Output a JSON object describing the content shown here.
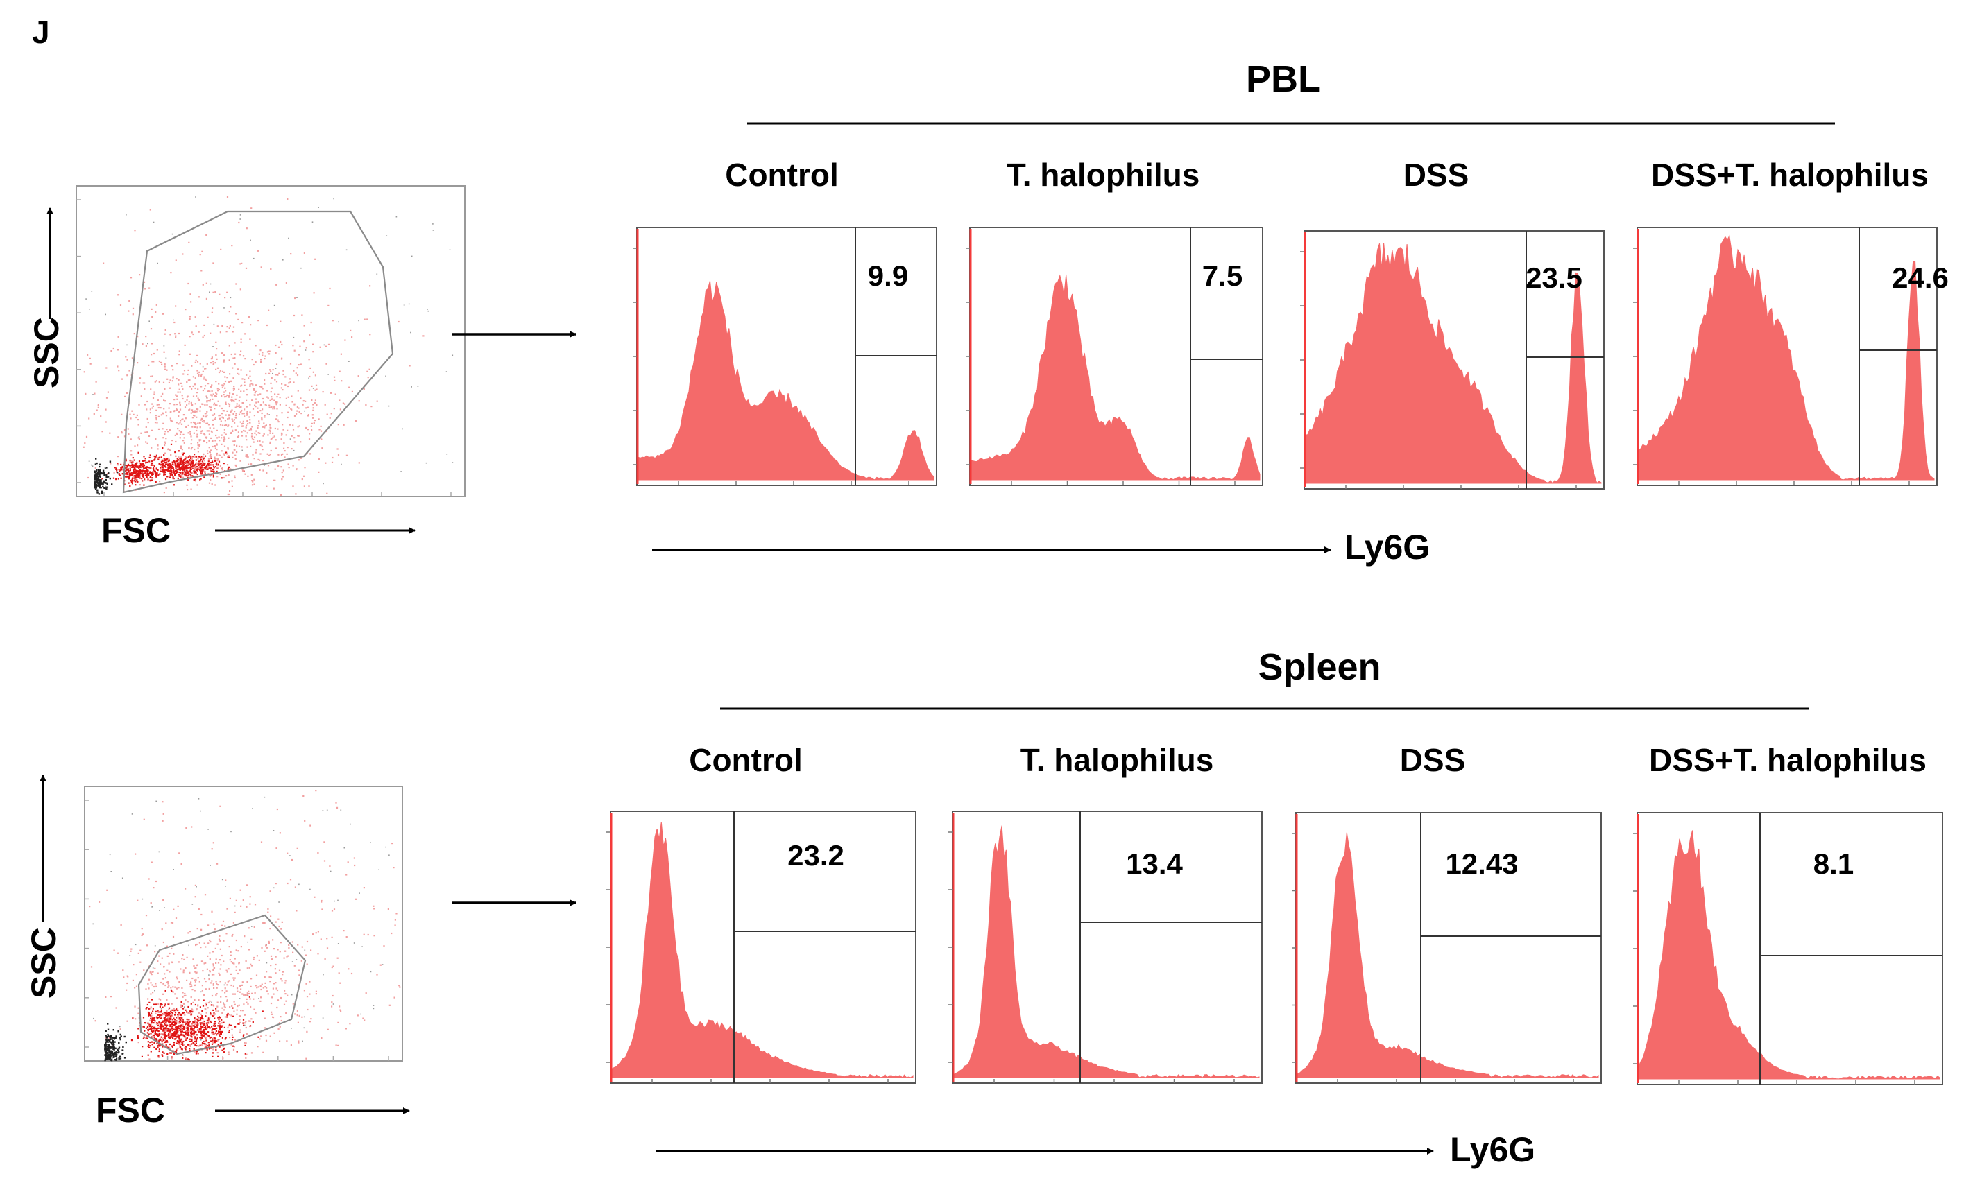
{
  "figure": {
    "panel_label": "J",
    "scatter": {
      "x_label": "FSC",
      "y_label": "SSC"
    },
    "marker_label": "Ly6G",
    "groups": [
      "Control",
      "T. halophilus",
      "DSS",
      "DSS+T. halophilus"
    ],
    "colors": {
      "histogram_fill": "#f46a6a",
      "scatter_dense": "#e01515",
      "scatter_light": "#f2a0a0",
      "debris": "#222222",
      "gate_line": "#8a8a8a"
    }
  },
  "chart_data": [
    {
      "type": "histogram",
      "title": "PBL",
      "xlabel": "Ly6G",
      "categories": [
        "Control",
        "T. halophilus",
        "DSS",
        "DSS+T. halophilus"
      ],
      "series": [
        {
          "name": "Ly6G+ (%)",
          "values": [
            9.9,
            7.5,
            23.5,
            24.6
          ]
        }
      ],
      "value_labels": [
        "9.9",
        "7.5",
        "23.5",
        "24.6"
      ]
    },
    {
      "type": "histogram",
      "title": "Spleen",
      "xlabel": "Ly6G",
      "categories": [
        "Control",
        "T. halophilus",
        "DSS",
        "DSS+T. halophilus"
      ],
      "series": [
        {
          "name": "Ly6G+ (%)",
          "values": [
            23.2,
            13.4,
            12.43,
            8.1
          ]
        }
      ],
      "value_labels": [
        "23.2",
        "13.4",
        "12.43",
        "8.1"
      ]
    }
  ]
}
